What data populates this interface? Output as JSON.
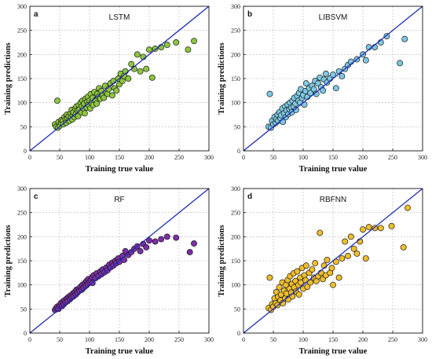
{
  "chart_data": [
    {
      "type": "scatter",
      "panel_letter": "a",
      "title": "LSTM",
      "xlabel": "Training true value",
      "ylabel": "Training predictions",
      "xlim": [
        0,
        300
      ],
      "ylim": [
        0,
        300
      ],
      "xticks": [
        0,
        50,
        100,
        150,
        200,
        250,
        300
      ],
      "yticks": [
        0,
        50,
        100,
        150,
        200,
        250,
        300
      ],
      "grid": true,
      "reference_line": "y=x",
      "marker_color": "#8cc63f",
      "points": [
        [
          42,
          55
        ],
        [
          44,
          50
        ],
        [
          46,
          104
        ],
        [
          47,
          48
        ],
        [
          48,
          60
        ],
        [
          50,
          52
        ],
        [
          52,
          58
        ],
        [
          53,
          64
        ],
        [
          55,
          62
        ],
        [
          56,
          55
        ],
        [
          58,
          70
        ],
        [
          60,
          66
        ],
        [
          61,
          58
        ],
        [
          62,
          75
        ],
        [
          63,
          68
        ],
        [
          65,
          72
        ],
        [
          66,
          62
        ],
        [
          68,
          78
        ],
        [
          69,
          70
        ],
        [
          70,
          85
        ],
        [
          71,
          65
        ],
        [
          72,
          74
        ],
        [
          73,
          80
        ],
        [
          75,
          70
        ],
        [
          76,
          88
        ],
        [
          77,
          76
        ],
        [
          78,
          92
        ],
        [
          80,
          84
        ],
        [
          81,
          72
        ],
        [
          82,
          95
        ],
        [
          83,
          86
        ],
        [
          85,
          100
        ],
        [
          86,
          80
        ],
        [
          87,
          92
        ],
        [
          88,
          104
        ],
        [
          90,
          88
        ],
        [
          91,
          98
        ],
        [
          92,
          78
        ],
        [
          93,
          108
        ],
        [
          95,
          90
        ],
        [
          96,
          102
        ],
        [
          97,
          112
        ],
        [
          98,
          96
        ],
        [
          100,
          104
        ],
        [
          101,
          88
        ],
        [
          102,
          118
        ],
        [
          103,
          100
        ],
        [
          105,
          110
        ],
        [
          106,
          95
        ],
        [
          108,
          122
        ],
        [
          110,
          105
        ],
        [
          112,
          98
        ],
        [
          113,
          118
        ],
        [
          115,
          112
        ],
        [
          116,
          130
        ],
        [
          118,
          108
        ],
        [
          120,
          124
        ],
        [
          122,
          115
        ],
        [
          124,
          110
        ],
        [
          126,
          135
        ],
        [
          128,
          120
        ],
        [
          130,
          118
        ],
        [
          132,
          128
        ],
        [
          135,
          140
        ],
        [
          138,
          115
        ],
        [
          140,
          145
        ],
        [
          142,
          130
        ],
        [
          145,
          125
        ],
        [
          148,
          150
        ],
        [
          150,
          138
        ],
        [
          152,
          160
        ],
        [
          155,
          145
        ],
        [
          158,
          155
        ],
        [
          160,
          165
        ],
        [
          165,
          150
        ],
        [
          170,
          180
        ],
        [
          175,
          170
        ],
        [
          180,
          200
        ],
        [
          185,
          165
        ],
        [
          190,
          195
        ],
        [
          195,
          170
        ],
        [
          200,
          210
        ],
        [
          205,
          152
        ],
        [
          210,
          212
        ],
        [
          220,
          215
        ],
        [
          230,
          220
        ],
        [
          245,
          225
        ],
        [
          265,
          210
        ],
        [
          275,
          228
        ]
      ]
    },
    {
      "type": "scatter",
      "panel_letter": "b",
      "title": "LIBSVM",
      "xlabel": "Training true value",
      "ylabel": "Training predictions",
      "xlim": [
        0,
        300
      ],
      "ylim": [
        0,
        300
      ],
      "xticks": [
        0,
        50,
        100,
        150,
        200,
        250,
        300
      ],
      "yticks": [
        0,
        50,
        100,
        150,
        200,
        250,
        300
      ],
      "grid": true,
      "reference_line": "y=x",
      "marker_color": "#7ec8e3",
      "points": [
        [
          42,
          50
        ],
        [
          44,
          118
        ],
        [
          46,
          48
        ],
        [
          48,
          62
        ],
        [
          50,
          55
        ],
        [
          52,
          70
        ],
        [
          54,
          58
        ],
        [
          55,
          66
        ],
        [
          57,
          75
        ],
        [
          58,
          62
        ],
        [
          60,
          80
        ],
        [
          62,
          68
        ],
        [
          63,
          74
        ],
        [
          65,
          88
        ],
        [
          66,
          60
        ],
        [
          68,
          78
        ],
        [
          70,
          92
        ],
        [
          71,
          70
        ],
        [
          72,
          84
        ],
        [
          74,
          96
        ],
        [
          75,
          76
        ],
        [
          77,
          86
        ],
        [
          78,
          100
        ],
        [
          80,
          90
        ],
        [
          81,
          80
        ],
        [
          82,
          104
        ],
        [
          84,
          92
        ],
        [
          85,
          110
        ],
        [
          87,
          98
        ],
        [
          88,
          85
        ],
        [
          90,
          114
        ],
        [
          92,
          104
        ],
        [
          93,
          120
        ],
        [
          95,
          100
        ],
        [
          96,
          128
        ],
        [
          98,
          110
        ],
        [
          100,
          116
        ],
        [
          102,
          96
        ],
        [
          104,
          124
        ],
        [
          105,
          140
        ],
        [
          107,
          112
        ],
        [
          110,
          130
        ],
        [
          112,
          120
        ],
        [
          115,
          135
        ],
        [
          118,
          128
        ],
        [
          120,
          145
        ],
        [
          122,
          118
        ],
        [
          125,
          140
        ],
        [
          128,
          152
        ],
        [
          130,
          132
        ],
        [
          133,
          125
        ],
        [
          135,
          148
        ],
        [
          138,
          160
        ],
        [
          140,
          142
        ],
        [
          145,
          150
        ],
        [
          150,
          158
        ],
        [
          155,
          130
        ],
        [
          160,
          165
        ],
        [
          165,
          155
        ],
        [
          170,
          170
        ],
        [
          175,
          178
        ],
        [
          180,
          185
        ],
        [
          190,
          190
        ],
        [
          200,
          200
        ],
        [
          205,
          188
        ],
        [
          210,
          215
        ],
        [
          220,
          215
        ],
        [
          230,
          225
        ],
        [
          240,
          238
        ],
        [
          262,
          182
        ],
        [
          270,
          232
        ]
      ]
    },
    {
      "type": "scatter",
      "panel_letter": "c",
      "title": "RF",
      "xlabel": "Training true value",
      "ylabel": "Training predictions",
      "xlim": [
        0,
        300
      ],
      "ylim": [
        0,
        300
      ],
      "xticks": [
        0,
        50,
        100,
        150,
        200,
        250,
        300
      ],
      "yticks": [
        0,
        50,
        100,
        150,
        200,
        250,
        300
      ],
      "grid": true,
      "reference_line": "y=x",
      "marker_color": "#7b2fa8",
      "points": [
        [
          42,
          48
        ],
        [
          44,
          52
        ],
        [
          46,
          55
        ],
        [
          48,
          50
        ],
        [
          50,
          58
        ],
        [
          52,
          62
        ],
        [
          54,
          56
        ],
        [
          55,
          65
        ],
        [
          57,
          60
        ],
        [
          58,
          68
        ],
        [
          60,
          64
        ],
        [
          62,
          72
        ],
        [
          63,
          66
        ],
        [
          65,
          75
        ],
        [
          67,
          70
        ],
        [
          68,
          78
        ],
        [
          70,
          74
        ],
        [
          72,
          82
        ],
        [
          73,
          76
        ],
        [
          75,
          85
        ],
        [
          77,
          80
        ],
        [
          78,
          90
        ],
        [
          80,
          84
        ],
        [
          82,
          92
        ],
        [
          83,
          88
        ],
        [
          85,
          96
        ],
        [
          87,
          90
        ],
        [
          88,
          100
        ],
        [
          90,
          94
        ],
        [
          92,
          104
        ],
        [
          94,
          98
        ],
        [
          95,
          108
        ],
        [
          97,
          102
        ],
        [
          98,
          112
        ],
        [
          100,
          106
        ],
        [
          102,
          110
        ],
        [
          104,
          116
        ],
        [
          105,
          104
        ],
        [
          107,
          120
        ],
        [
          110,
          114
        ],
        [
          112,
          124
        ],
        [
          115,
          118
        ],
        [
          118,
          128
        ],
        [
          120,
          122
        ],
        [
          122,
          132
        ],
        [
          125,
          126
        ],
        [
          128,
          136
        ],
        [
          130,
          130
        ],
        [
          133,
          142
        ],
        [
          135,
          136
        ],
        [
          138,
          146
        ],
        [
          140,
          140
        ],
        [
          143,
          150
        ],
        [
          145,
          145
        ],
        [
          148,
          155
        ],
        [
          150,
          148
        ],
        [
          155,
          160
        ],
        [
          158,
          152
        ],
        [
          160,
          170
        ],
        [
          165,
          162
        ],
        [
          170,
          168
        ],
        [
          175,
          175
        ],
        [
          180,
          180
        ],
        [
          185,
          170
        ],
        [
          190,
          185
        ],
        [
          195,
          178
        ],
        [
          200,
          192
        ],
        [
          210,
          190
        ],
        [
          220,
          195
        ],
        [
          230,
          200
        ],
        [
          245,
          198
        ],
        [
          268,
          168
        ],
        [
          275,
          186
        ]
      ]
    },
    {
      "type": "scatter",
      "panel_letter": "d",
      "title": "RBFNN",
      "xlabel": "Training true value",
      "ylabel": "Training predictions",
      "xlim": [
        0,
        300
      ],
      "ylim": [
        0,
        300
      ],
      "xticks": [
        0,
        50,
        100,
        150,
        200,
        250,
        300
      ],
      "yticks": [
        0,
        50,
        100,
        150,
        200,
        250,
        300
      ],
      "grid": true,
      "reference_line": "y=x",
      "marker_color": "#f0be2c",
      "points": [
        [
          42,
          52
        ],
        [
          44,
          115
        ],
        [
          46,
          48
        ],
        [
          48,
          60
        ],
        [
          50,
          55
        ],
        [
          52,
          72
        ],
        [
          54,
          62
        ],
        [
          55,
          85
        ],
        [
          57,
          58
        ],
        [
          58,
          75
        ],
        [
          60,
          95
        ],
        [
          62,
          68
        ],
        [
          63,
          80
        ],
        [
          65,
          105
        ],
        [
          66,
          62
        ],
        [
          68,
          88
        ],
        [
          70,
          72
        ],
        [
          71,
          100
        ],
        [
          72,
          82
        ],
        [
          74,
          110
        ],
        [
          75,
          70
        ],
        [
          77,
          92
        ],
        [
          78,
          118
        ],
        [
          80,
          84
        ],
        [
          81,
          102
        ],
        [
          82,
          76
        ],
        [
          84,
          124
        ],
        [
          85,
          95
        ],
        [
          87,
          108
        ],
        [
          88,
          86
        ],
        [
          90,
          128
        ],
        [
          92,
          100
        ],
        [
          93,
          80
        ],
        [
          95,
          115
        ],
        [
          96,
          105
        ],
        [
          98,
          135
        ],
        [
          100,
          92
        ],
        [
          102,
          120
        ],
        [
          104,
          110
        ],
        [
          105,
          140
        ],
        [
          107,
          96
        ],
        [
          110,
          125
        ],
        [
          112,
          105
        ],
        [
          115,
          132
        ],
        [
          118,
          115
        ],
        [
          120,
          145
        ],
        [
          122,
          108
        ],
        [
          125,
          118
        ],
        [
          128,
          208
        ],
        [
          130,
          125
        ],
        [
          133,
          112
        ],
        [
          135,
          140
        ],
        [
          138,
          120
        ],
        [
          140,
          152
        ],
        [
          145,
          125
        ],
        [
          148,
          135
        ],
        [
          150,
          100
        ],
        [
          155,
          148
        ],
        [
          160,
          115
        ],
        [
          165,
          155
        ],
        [
          170,
          190
        ],
        [
          175,
          160
        ],
        [
          180,
          200
        ],
        [
          185,
          175
        ],
        [
          190,
          165
        ],
        [
          195,
          190
        ],
        [
          200,
          215
        ],
        [
          205,
          155
        ],
        [
          210,
          220
        ],
        [
          220,
          218
        ],
        [
          230,
          218
        ],
        [
          248,
          222
        ],
        [
          268,
          178
        ],
        [
          275,
          260
        ]
      ]
    }
  ]
}
